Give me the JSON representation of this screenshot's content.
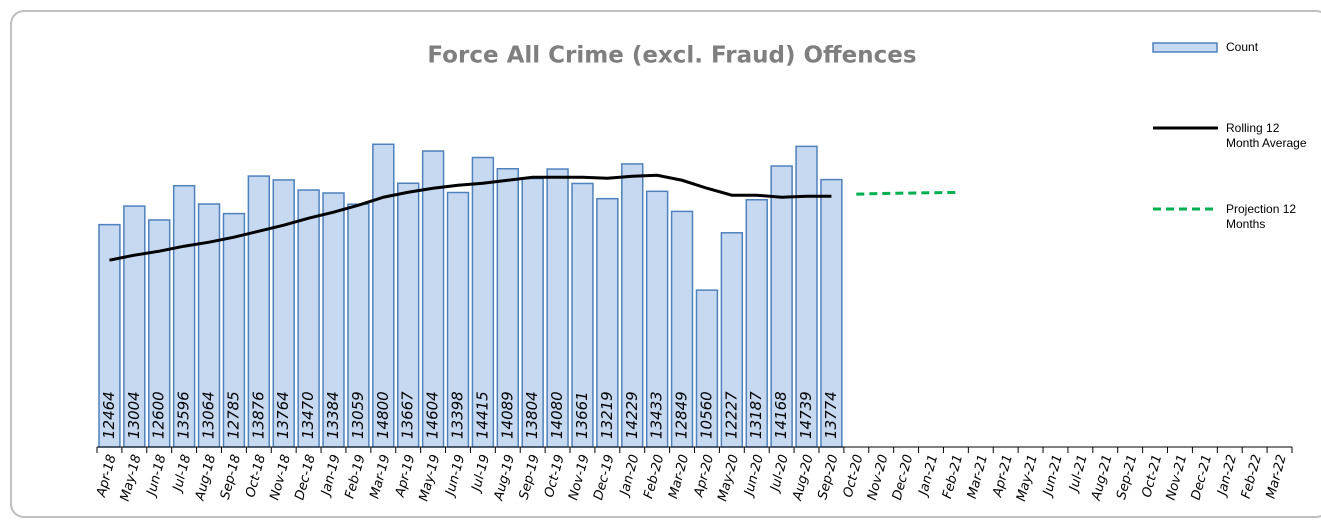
{
  "chart_data": {
    "type": "bar",
    "title": "Force All Crime (excl. Fraud) Offences",
    "categories": [
      "Apr-18",
      "May-18",
      "Jun-18",
      "Jul-18",
      "Aug-18",
      "Sep-18",
      "Oct-18",
      "Nov-18",
      "Dec-18",
      "Jan-19",
      "Feb-19",
      "Mar-19",
      "Apr-19",
      "May-19",
      "Jun-19",
      "Jul-19",
      "Aug-19",
      "Sep-19",
      "Oct-19",
      "Nov-19",
      "Dec-19",
      "Jan-20",
      "Feb-20",
      "Mar-20",
      "Apr-20",
      "May-20",
      "Jun-20",
      "Jul-20",
      "Aug-20",
      "Sep-20",
      "Oct-20",
      "Nov-20",
      "Dec-20",
      "Jan-21",
      "Feb-21",
      "Mar-21",
      "Apr-21",
      "May-21",
      "Jun-21",
      "Jul-21",
      "Aug-21",
      "Sep-21",
      "Oct-21",
      "Nov-21",
      "Dec-21",
      "Jan-22",
      "Feb-22",
      "Mar-22"
    ],
    "series": [
      {
        "name": "Count",
        "type": "bar",
        "color": "#c6d9f1",
        "stroke": "#4f81bd",
        "values": [
          12464,
          13004,
          12600,
          13596,
          13064,
          12785,
          13876,
          13764,
          13470,
          13384,
          13059,
          14800,
          13667,
          14604,
          13398,
          14415,
          14089,
          13804,
          14080,
          13661,
          13219,
          14229,
          13433,
          12849,
          10560,
          12227,
          13187,
          14168,
          14739,
          13774,
          null,
          null,
          null,
          null,
          null,
          null,
          null,
          null,
          null,
          null,
          null,
          null,
          null,
          null,
          null,
          null,
          null,
          null
        ]
      },
      {
        "name": "Rolling 12 Month Average",
        "type": "line",
        "color": "#000000",
        "dash": false,
        "values": [
          11431,
          11576,
          11692,
          11837,
          11954,
          12099,
          12273,
          12448,
          12651,
          12825,
          13028,
          13261,
          13406,
          13522,
          13609,
          13667,
          13754,
          13842,
          13842,
          13842,
          13812,
          13871,
          13900,
          13754,
          13522,
          13319,
          13319,
          13261,
          13290,
          13290,
          null,
          null,
          null,
          null,
          null,
          null,
          null,
          null,
          null,
          null,
          null,
          null,
          null,
          null,
          null,
          null,
          null,
          null
        ]
      },
      {
        "name": "Projection 12 Months",
        "type": "line",
        "color": "#00b050",
        "dash": true,
        "values": [
          null,
          null,
          null,
          null,
          null,
          null,
          null,
          null,
          null,
          null,
          null,
          null,
          null,
          null,
          null,
          null,
          null,
          null,
          null,
          null,
          null,
          null,
          null,
          null,
          null,
          null,
          null,
          null,
          null,
          null,
          13350,
          13370,
          13380,
          13390,
          13400,
          null,
          null,
          null,
          null,
          null,
          null,
          null,
          null,
          null,
          null,
          null,
          null,
          null
        ]
      }
    ],
    "ylim": [
      6000,
      16000
    ]
  }
}
